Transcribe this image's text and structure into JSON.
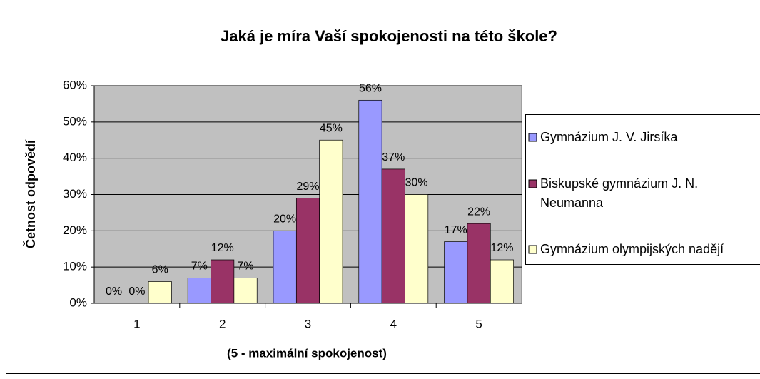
{
  "chart_data": {
    "type": "bar",
    "title": "Jaká je míra Vaší spokojenosti na této škole?",
    "x_label": "(5 - maximální spokojenost)",
    "y_label": "Četnost odpovědí",
    "categories": [
      "1",
      "2",
      "3",
      "4",
      "5"
    ],
    "series": [
      {
        "name": "Gymnázium J. V. Jirsíka",
        "color": "#9999ff",
        "values": [
          0,
          7,
          20,
          56,
          17
        ],
        "value_labels": [
          "0%",
          "7%",
          "20%",
          "56%",
          "17%"
        ]
      },
      {
        "name": "Biskupské gymnázium J. N. Neumanna",
        "color": "#993366",
        "values": [
          0,
          12,
          29,
          37,
          22
        ],
        "value_labels": [
          "0%",
          "12%",
          "29%",
          "37%",
          "22%"
        ]
      },
      {
        "name": "Gymnázium olympijských nadějí",
        "color": "#ffffcc",
        "values": [
          6,
          7,
          45,
          30,
          12
        ],
        "value_labels": [
          "6%",
          "7%",
          "45%",
          "30%",
          "12%"
        ]
      }
    ],
    "ylim": [
      0,
      60
    ],
    "yticks": [
      {
        "value": 0,
        "label": "0%"
      },
      {
        "value": 10,
        "label": "10%"
      },
      {
        "value": 20,
        "label": "20%"
      },
      {
        "value": 30,
        "label": "30%"
      },
      {
        "value": 40,
        "label": "40%"
      },
      {
        "value": 50,
        "label": "50%"
      },
      {
        "value": 60,
        "label": "60%"
      }
    ],
    "grid": true,
    "legend": "right"
  }
}
